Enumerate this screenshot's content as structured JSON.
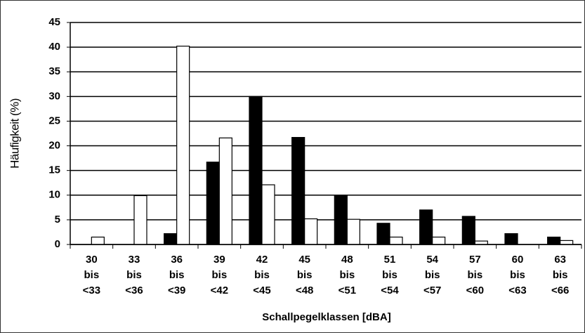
{
  "chart_data": {
    "type": "bar",
    "y_label": "Häufigkeit (%)",
    "x_label": "Schallpegelklassen [dBA]",
    "categories": [
      [
        "30",
        "bis",
        "<33"
      ],
      [
        "33",
        "bis",
        "<36"
      ],
      [
        "36",
        "bis",
        "<39"
      ],
      [
        "39",
        "bis",
        "<42"
      ],
      [
        "42",
        "bis",
        "<45"
      ],
      [
        "45",
        "bis",
        "<48"
      ],
      [
        "48",
        "bis",
        "<51"
      ],
      [
        "51",
        "bis",
        "<54"
      ],
      [
        "54",
        "bis",
        "<57"
      ],
      [
        "57",
        "bis",
        "<60"
      ],
      [
        "60",
        "bis",
        "<63"
      ],
      [
        "63",
        "bis",
        "<66"
      ]
    ],
    "series": [
      {
        "color": "#000000",
        "values": [
          0,
          0,
          2.2,
          16.7,
          30,
          21.7,
          10,
          4.3,
          7,
          5.7,
          2.2,
          1.5
        ]
      },
      {
        "color": "#ffffff",
        "values": [
          1.5,
          9.9,
          40.2,
          21.6,
          12.1,
          5.2,
          5.1,
          1.5,
          1.5,
          0.7,
          0,
          0.8
        ]
      }
    ],
    "ylim": [
      0,
      45
    ],
    "yticks": [
      0,
      5,
      10,
      15,
      20,
      25,
      30,
      35,
      40,
      45
    ],
    "grid": true
  }
}
